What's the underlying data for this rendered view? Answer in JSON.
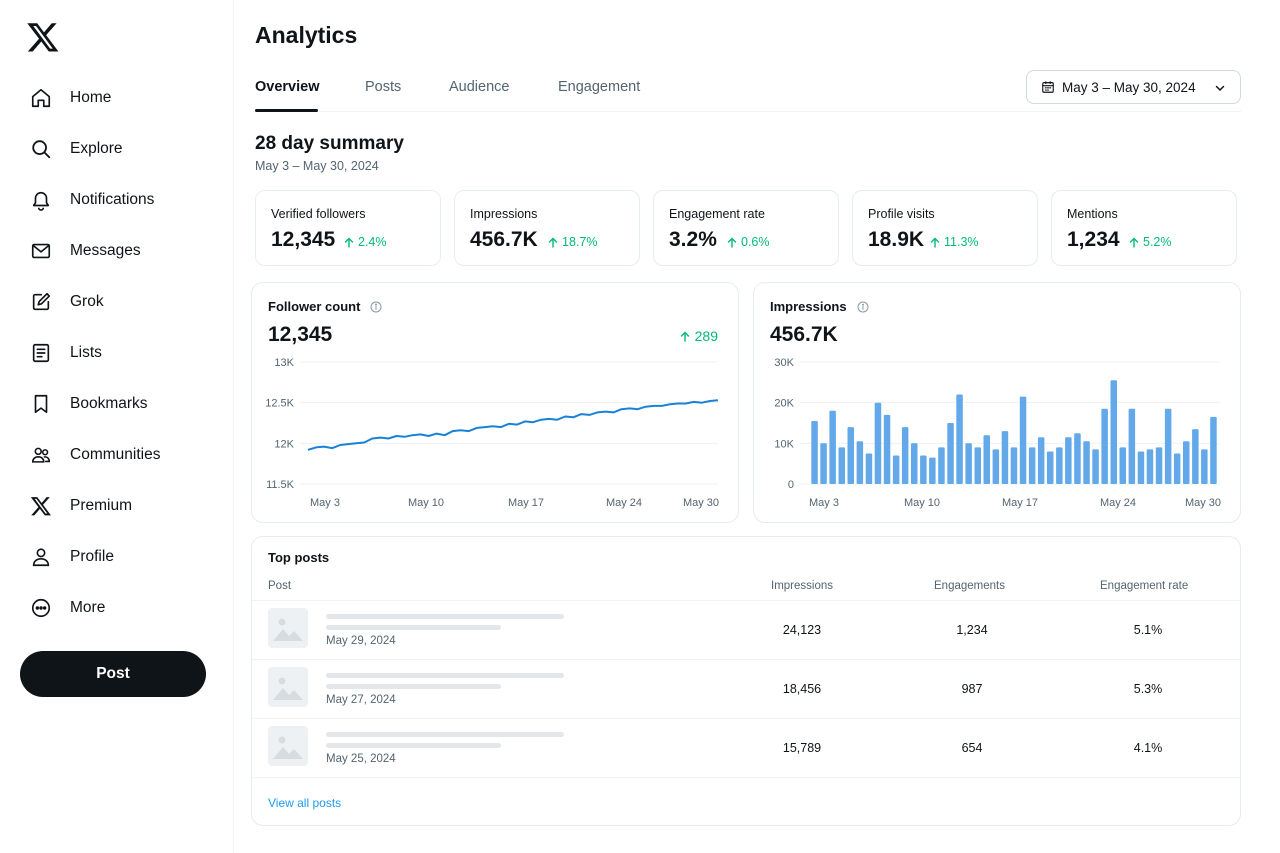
{
  "sidebar": {
    "logo_icon": "x-logo",
    "items": [
      {
        "label": "Home",
        "icon": "home-icon"
      },
      {
        "label": "Explore",
        "icon": "search-icon"
      },
      {
        "label": "Notifications",
        "icon": "bell-icon"
      },
      {
        "label": "Messages",
        "icon": "envelope-icon"
      },
      {
        "label": "Grok",
        "icon": "grok-icon"
      },
      {
        "label": "Lists",
        "icon": "list-icon"
      },
      {
        "label": "Bookmarks",
        "icon": "bookmark-icon"
      },
      {
        "label": "Communities",
        "icon": "people-icon"
      },
      {
        "label": "Premium",
        "icon": "x-logo-icon"
      },
      {
        "label": "Profile",
        "icon": "person-icon"
      },
      {
        "label": "More",
        "icon": "more-icon"
      }
    ],
    "post_button": "Post"
  },
  "header": {
    "title": "Analytics",
    "tabs": [
      {
        "label": "Overview",
        "active": true
      },
      {
        "label": "Posts",
        "active": false
      },
      {
        "label": "Audience",
        "active": false
      },
      {
        "label": "Engagement",
        "active": false
      }
    ],
    "date_range": "May 3 – May 30, 2024"
  },
  "summary": {
    "title": "28 day summary",
    "subtitle": "May 3 – May 30, 2024",
    "cards": [
      {
        "label": "Verified followers",
        "value": "12,345",
        "delta": "2.4%"
      },
      {
        "label": "Impressions",
        "value": "456.7K",
        "delta": "18.7%"
      },
      {
        "label": "Engagement rate",
        "value": "3.2%",
        "delta": "0.6%"
      },
      {
        "label": "Profile visits",
        "value": "18.9K",
        "delta": "11.3%"
      },
      {
        "label": "Mentions",
        "value": "1,234",
        "delta": "5.2%"
      }
    ]
  },
  "follower_panel": {
    "title": "Follower count",
    "value": "12,345",
    "delta": "289"
  },
  "impressions_panel": {
    "title": "Impressions",
    "value": "456.7K"
  },
  "colors": {
    "accent": "#1d9bf0",
    "line": "#1a82d6",
    "bar": "#63a9ea",
    "positive": "#00ba7c"
  },
  "chart_data": [
    {
      "type": "line",
      "x_ticks": [
        "May 3",
        "May 10",
        "May 17",
        "May 24",
        "May 30"
      ],
      "y_ticks": [
        "13K",
        "12.5K",
        "12K",
        "11.5K"
      ],
      "ylim": [
        11500,
        13000
      ],
      "grid": true,
      "series": [
        {
          "values": [
            11920,
            11950,
            11960,
            11940,
            11980,
            11990,
            12000,
            12010,
            12060,
            12070,
            12060,
            12090,
            12080,
            12100,
            12110,
            12090,
            12120,
            12100,
            12150,
            12160,
            12150,
            12190,
            12200,
            12210,
            12200,
            12240,
            12230,
            12270,
            12260,
            12290,
            12300,
            12290,
            12330,
            12320,
            12360,
            12350,
            12380,
            12390,
            12380,
            12420,
            12430,
            12420,
            12450,
            12460,
            12460,
            12480,
            12490,
            12490,
            12510,
            12500,
            12520,
            12530
          ]
        }
      ]
    },
    {
      "type": "bar",
      "x_ticks": [
        "May 3",
        "May 10",
        "May 17",
        "May 24",
        "May 30"
      ],
      "y_ticks": [
        "30K",
        "20K",
        "10K",
        "0"
      ],
      "ylim": [
        0,
        30000
      ],
      "grid": true,
      "series": [
        {
          "values": [
            15500,
            10000,
            18000,
            9000,
            14000,
            10500,
            7500,
            20000,
            17000,
            7000,
            14000,
            10000,
            7000,
            6500,
            9000,
            15000,
            22000,
            10000,
            9000,
            12000,
            8500,
            13000,
            9000,
            21500,
            9000,
            11500,
            8000,
            9000,
            11500,
            12500,
            10500,
            8500,
            18500,
            25500,
            9000,
            18500,
            8000,
            8500,
            9000,
            18500,
            7500,
            10500,
            13500,
            8500,
            16500
          ]
        }
      ]
    }
  ],
  "top_posts": {
    "title": "Top posts",
    "columns": [
      "Post",
      "Impressions",
      "Engagements",
      "Engagement rate"
    ],
    "rows": [
      {
        "date": "May 29, 2024",
        "impressions": "24,123",
        "engagements": "1,234",
        "rate": "5.1%"
      },
      {
        "date": "May 27, 2024",
        "impressions": "18,456",
        "engagements": "987",
        "rate": "5.3%"
      },
      {
        "date": "May 25, 2024",
        "impressions": "15,789",
        "engagements": "654",
        "rate": "4.1%"
      }
    ],
    "view_all": "View all posts"
  }
}
